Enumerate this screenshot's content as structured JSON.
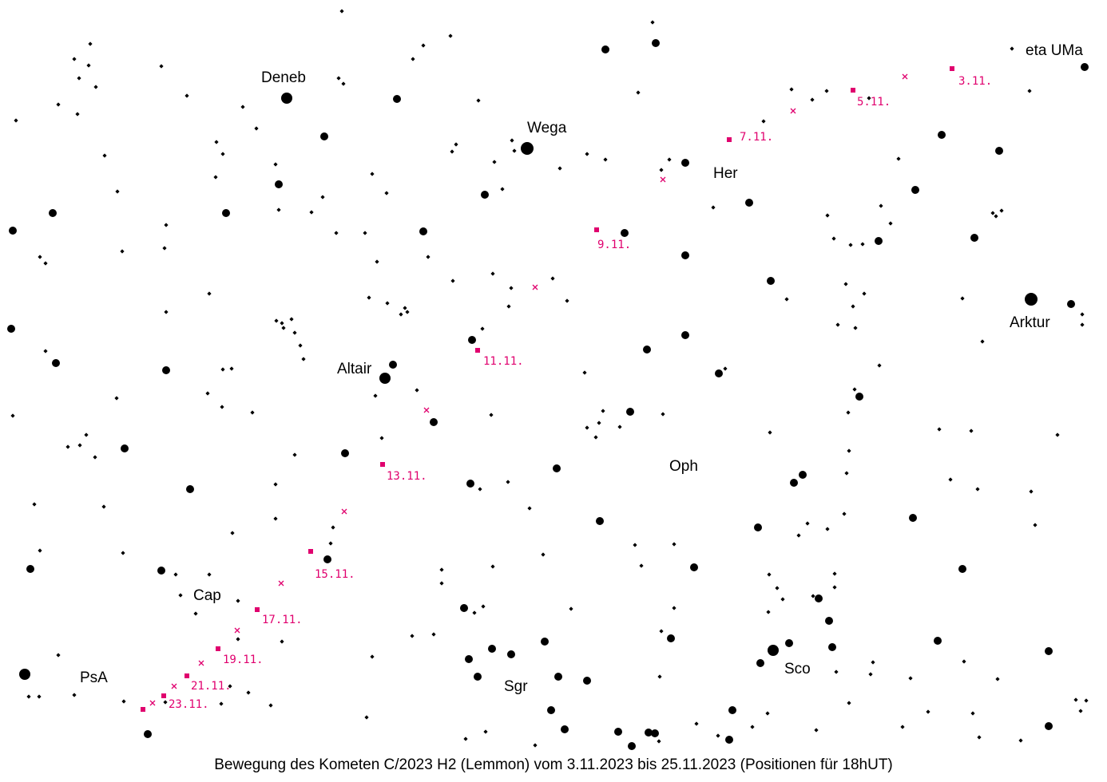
{
  "caption": "Bewegung des Kometen C/2023 H2 (Lemmon) vom 3.11.2023 bis 25.11.2023 (Positionen für 18hUT)",
  "colors": {
    "comet": "#e0006e",
    "stars": "#000000",
    "background": "#ffffff"
  },
  "labels": {
    "eta_uma": "eta UMa",
    "deneb": "Deneb",
    "wega": "Wega",
    "her": "Her",
    "arktur": "Arktur",
    "altair": "Altair",
    "oph": "Oph",
    "cap": "Cap",
    "psa": "PsA",
    "sgr": "Sgr",
    "sco": "Sco"
  },
  "comet_dates": [
    "3.11.",
    "5.11.",
    "7.11.",
    "9.11.",
    "11.11.",
    "13.11.",
    "15.11.",
    "17.11.",
    "19.11.",
    "21.11.",
    "23.11."
  ]
}
